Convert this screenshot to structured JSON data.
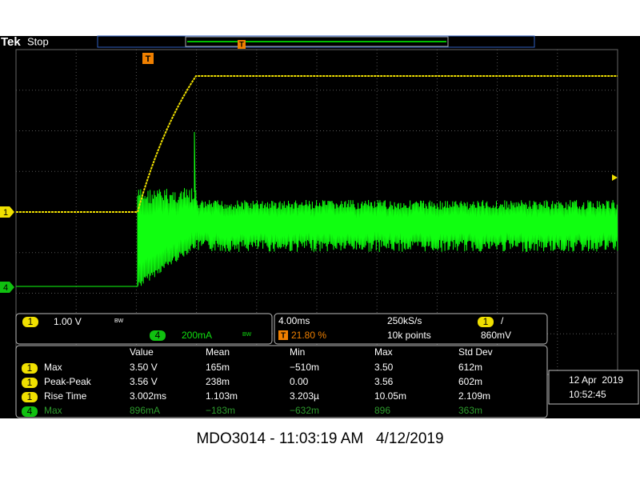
{
  "header": {
    "brand": "Tek",
    "status": "Stop"
  },
  "markers": {
    "trigger": "T",
    "ch1": "1",
    "ch4": "4"
  },
  "channel_panel": {
    "ch1": {
      "badge": "1",
      "scale": "1.00 V",
      "bw": "BW"
    },
    "ch4": {
      "badge": "4",
      "scale": "200mA",
      "bw": "BW"
    }
  },
  "timebase": {
    "time_div": "4.00ms",
    "sample_rate": "250kS/s",
    "trigger_marker": "T",
    "trigger_pos": "21.80 %",
    "record": "10k points",
    "trig_channel": "1",
    "trig_slope": "/",
    "trig_level": "860mV"
  },
  "measurements": {
    "columns": [
      "Value",
      "Mean",
      "Min",
      "Max",
      "Std Dev"
    ],
    "rows": [
      {
        "channel": "1",
        "name": "Max",
        "cells": [
          "3.50 V",
          "165m",
          "−510m",
          "3.50",
          "612m"
        ]
      },
      {
        "channel": "1",
        "name": "Peak-Peak",
        "cells": [
          "3.56 V",
          "238m",
          "0.00",
          "3.56",
          "602m"
        ]
      },
      {
        "channel": "1",
        "name": "Rise Time",
        "cells": [
          "3.002ms",
          "1.103m",
          "3.203µ",
          "10.05m",
          "2.109m"
        ]
      },
      {
        "channel": "4",
        "name": "Max",
        "cells": [
          "896mA",
          "−183m",
          "−632m",
          "896",
          "363m"
        ]
      }
    ]
  },
  "datetime": {
    "date": "12 Apr  2019",
    "time": "10:52:45"
  },
  "footer": "MDO3014 - 11:03:19 AM   4/12/2019"
}
